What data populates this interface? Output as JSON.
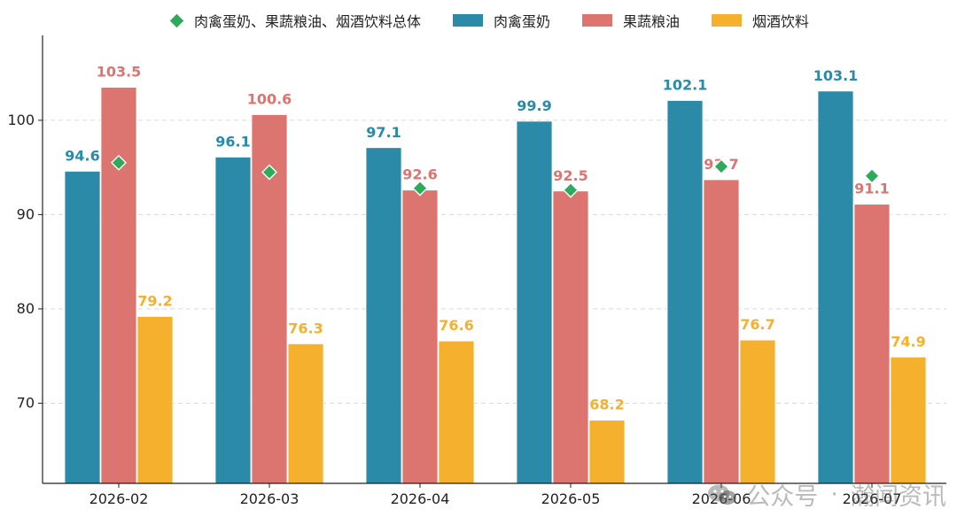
{
  "legend": {
    "total_label": "肉禽蛋奶、果蔬粮油、烟酒饮料总体",
    "s1_label": "肉禽蛋奶",
    "s2_label": "果蔬粮油",
    "s3_label": "烟酒饮料"
  },
  "watermark": {
    "text1": "公众号",
    "sep": "·",
    "text2": "瀚闻资讯",
    "icon": "wechat-icon"
  },
  "colors": {
    "s1": "#2a8aa8",
    "s2": "#dc7470",
    "s3": "#f5b02e",
    "total": "#2eaa5c",
    "grid": "#d9d9d9",
    "axis": "#222222"
  },
  "chart_data": {
    "type": "bar",
    "categories": [
      "2026-02",
      "2026-03",
      "2026-04",
      "2026-05",
      "2026-06",
      "2026-07"
    ],
    "series": [
      {
        "name": "肉禽蛋奶",
        "values": [
          94.6,
          96.1,
          97.1,
          99.9,
          102.1,
          103.1
        ]
      },
      {
        "name": "果蔬粮油",
        "values": [
          103.5,
          100.6,
          92.6,
          92.5,
          93.7,
          91.1
        ]
      },
      {
        "name": "烟酒饮料",
        "values": [
          79.2,
          76.3,
          76.6,
          68.2,
          76.7,
          74.9
        ]
      }
    ],
    "total_series": {
      "name": "肉禽蛋奶、果蔬粮油、烟酒饮料总体",
      "values": [
        95.5,
        94.5,
        92.8,
        92.6,
        95.1,
        94.1
      ]
    },
    "data_labels": [
      [
        "94.6",
        "96.1",
        "97.1",
        "99.9",
        "102.1",
        "103.1"
      ],
      [
        "103.5",
        "100.6",
        "92.6",
        "92.5",
        "93.7",
        "91.1"
      ],
      [
        "79.2",
        "76.3",
        "76.6",
        "68.2",
        "76.7",
        "74.9"
      ]
    ],
    "yticks": [
      70,
      80,
      90,
      100
    ],
    "ylim": [
      61.5,
      109
    ],
    "grid": true,
    "legend_position": "top"
  }
}
